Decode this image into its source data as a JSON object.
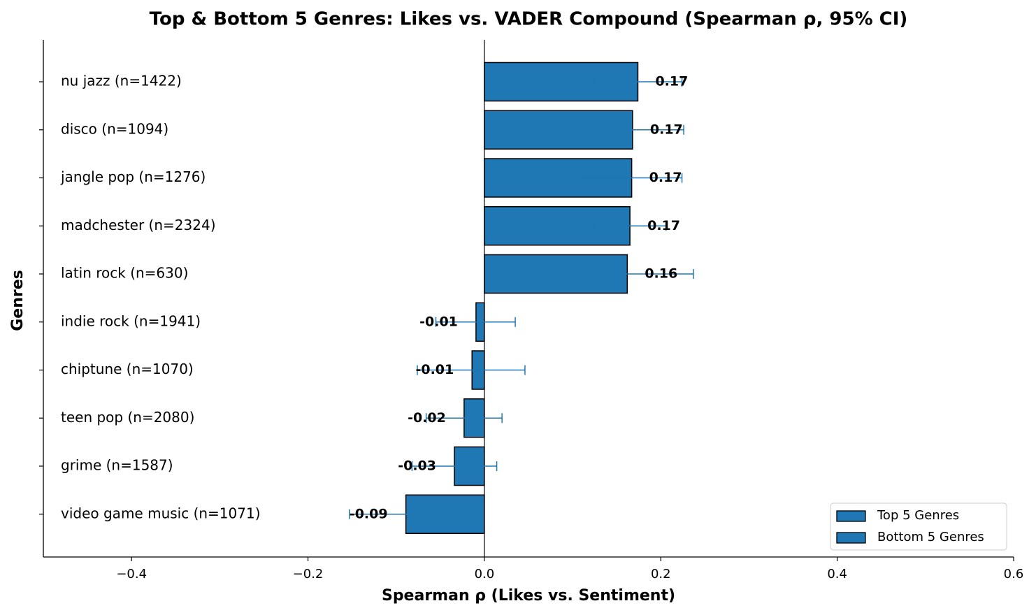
{
  "chart_data": {
    "type": "bar",
    "orientation": "horizontal",
    "title": "Top & Bottom 5 Genres: Likes vs. VADER Compound (Spearman ρ, 95% CI)",
    "xlabel": "Spearman ρ (Likes vs. Sentiment)",
    "ylabel": "Genres",
    "categories": [
      "nu jazz (n=1422)",
      "disco (n=1094)",
      "jangle pop (n=1276)",
      "madchester (n=2324)",
      "latin rock (n=630)",
      "indie rock (n=1941)",
      "chiptune (n=1070)",
      "teen pop (n=2080)",
      "grime (n=1587)",
      "video game music (n=1071)"
    ],
    "series": [
      {
        "name": "Top 5 Genres",
        "color": "#1f77b4",
        "values": [
          0.174,
          0.168,
          0.167,
          0.165,
          0.162,
          null,
          null,
          null,
          null,
          null
        ],
        "value_labels": [
          "0.17",
          "0.17",
          "0.17",
          "0.17",
          "0.16",
          null,
          null,
          null,
          null,
          null
        ],
        "ci_low": [
          0.124,
          0.11,
          0.11,
          0.124,
          0.085,
          null,
          null,
          null,
          null,
          null
        ],
        "ci_high": [
          0.224,
          0.226,
          0.224,
          0.206,
          0.237,
          null,
          null,
          null,
          null,
          null
        ]
      },
      {
        "name": "Bottom 5 Genres",
        "color": "#1f77b4",
        "values": [
          null,
          null,
          null,
          null,
          null,
          -0.0095,
          -0.014,
          -0.023,
          -0.034,
          -0.089
        ],
        "value_labels": [
          null,
          null,
          null,
          null,
          null,
          "-0.01",
          "-0.01",
          "-0.02",
          "-0.03",
          "-0.09"
        ],
        "ci_low": [
          null,
          null,
          null,
          null,
          null,
          -0.055,
          -0.076,
          -0.066,
          -0.082,
          -0.153
        ],
        "ci_high": [
          null,
          null,
          null,
          null,
          null,
          0.035,
          0.046,
          0.02,
          0.014,
          -0.025
        ]
      }
    ],
    "xlim": [
      -0.5,
      0.6
    ],
    "xticks": [
      {
        "value": -0.4,
        "label": "−0.4"
      },
      {
        "value": -0.2,
        "label": "−0.2"
      },
      {
        "value": 0,
        "label": "0.0"
      },
      0.2,
      0.4,
      0.6
    ],
    "legend": "lower right"
  }
}
